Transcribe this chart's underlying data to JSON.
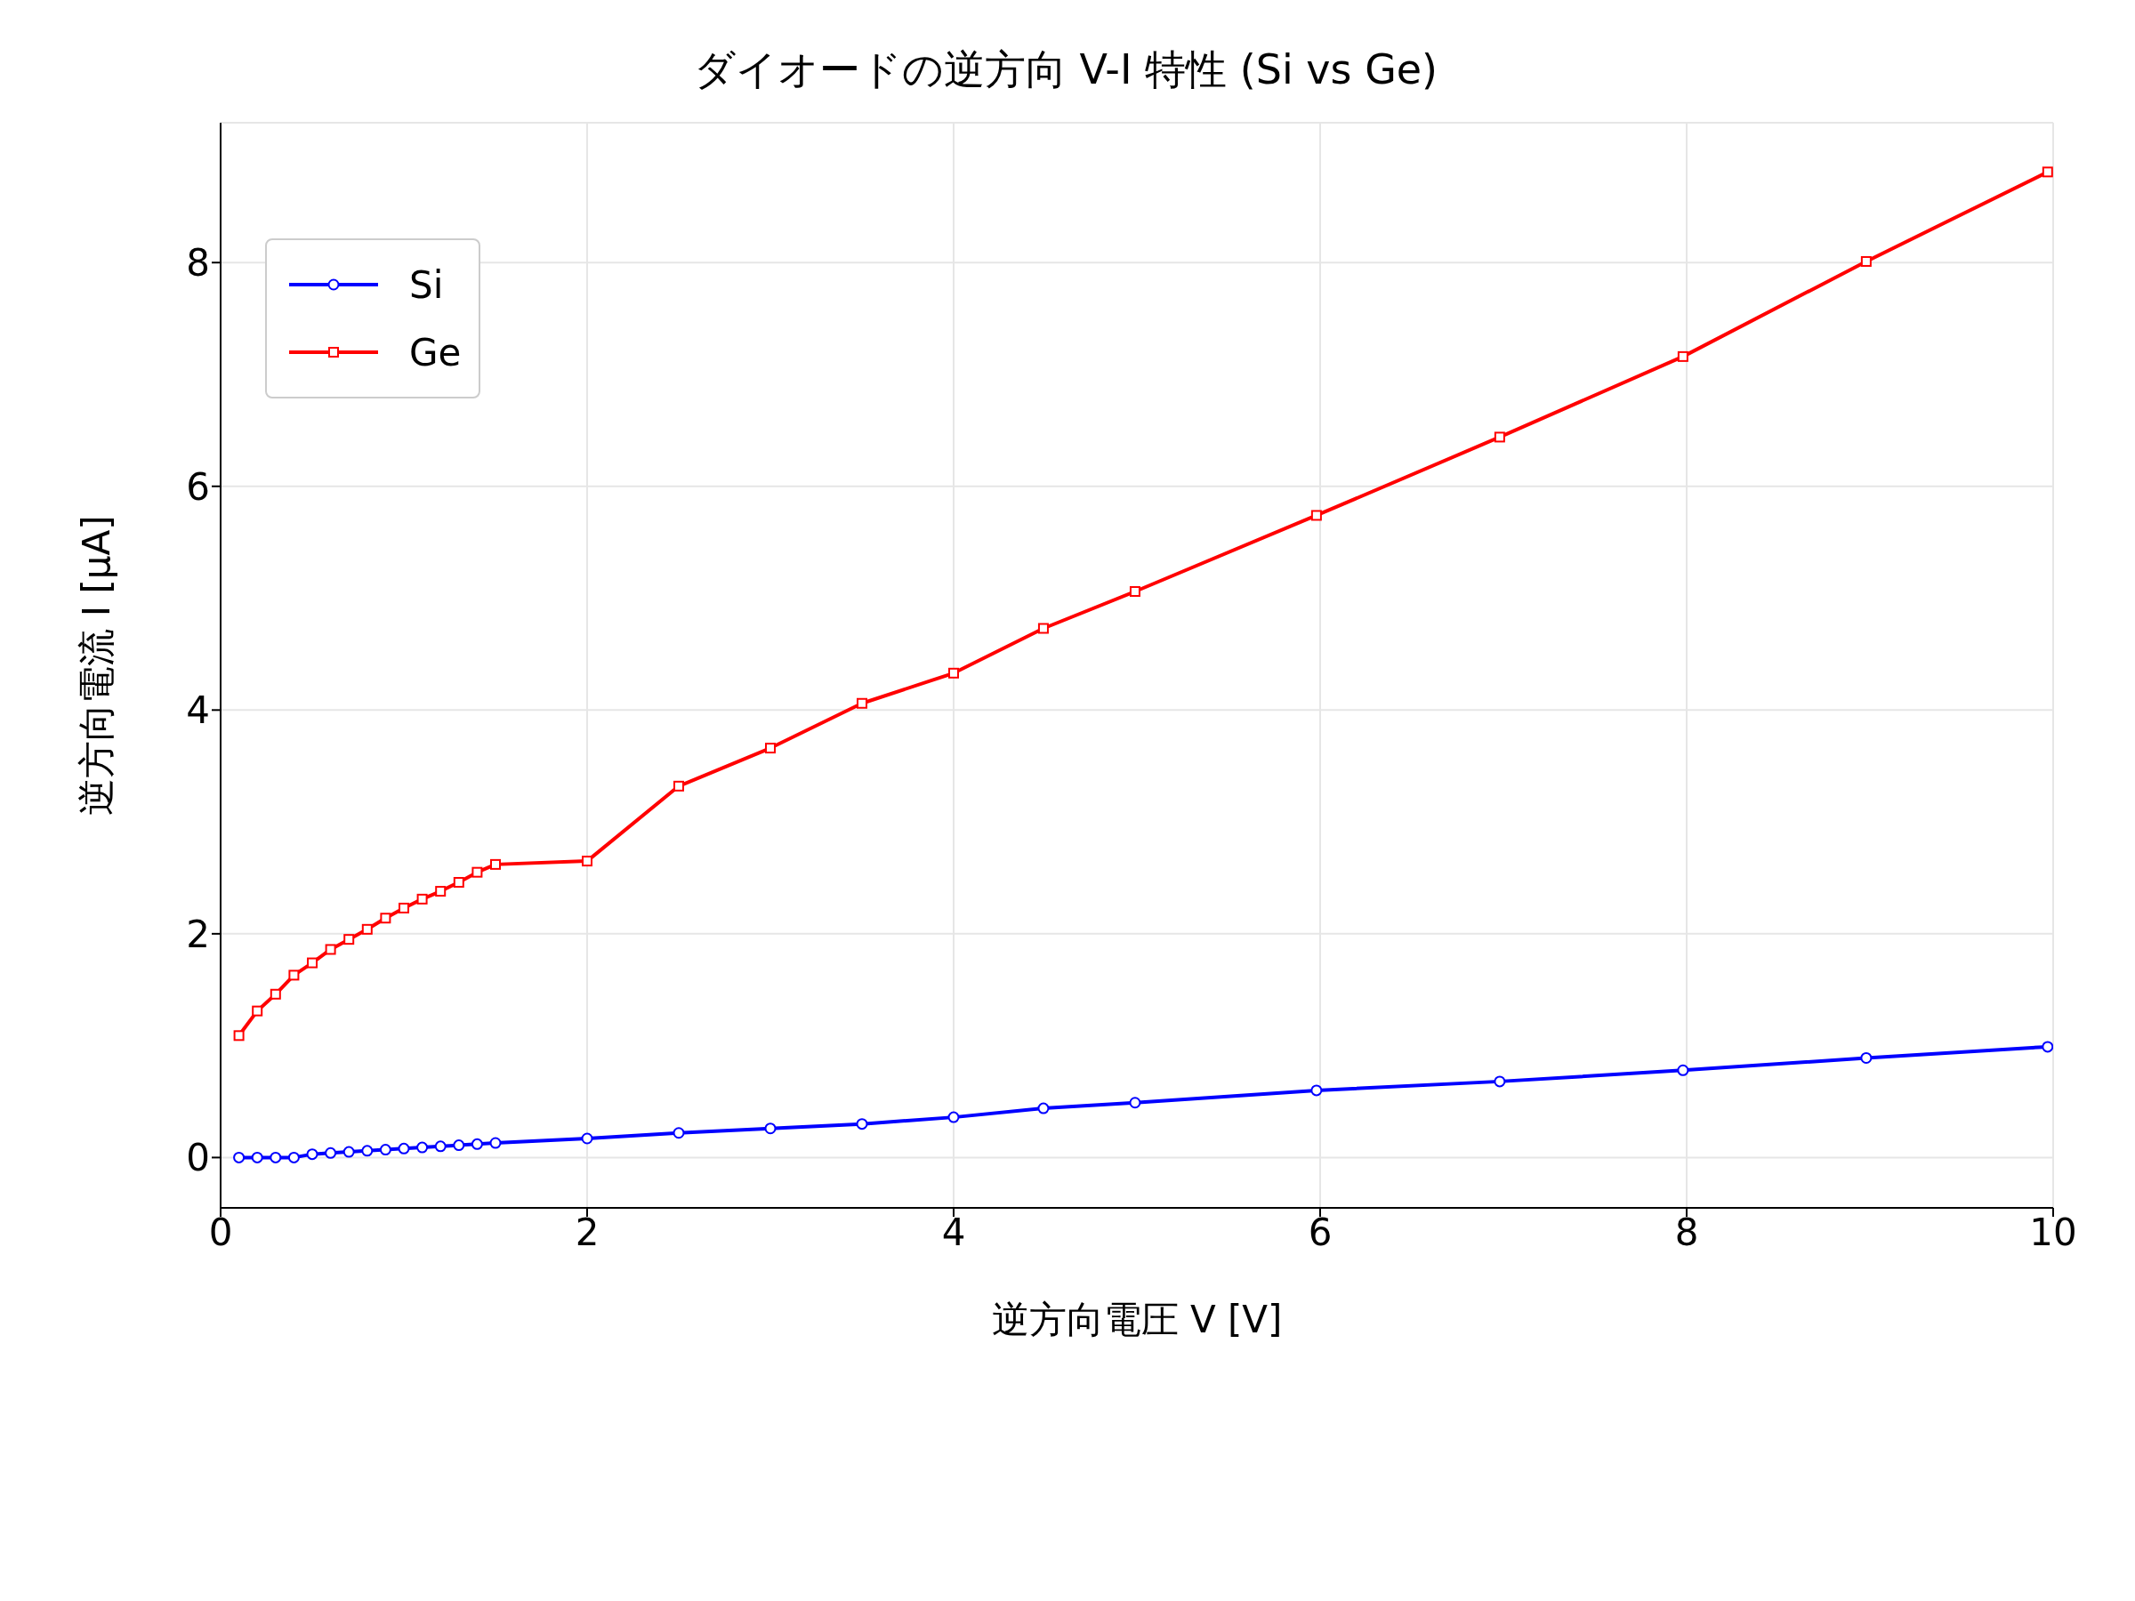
{
  "chart_data": {
    "type": "line",
    "title": "ダイオードの逆方向 V-I 特性 (Si vs Ge)",
    "xlabel": "逆方向電圧 V [V]",
    "ylabel": "逆方向電流 I [μA]",
    "xlim": [
      0,
      10
    ],
    "xticks": [
      0,
      2,
      4,
      6,
      8,
      10
    ],
    "ylim": [
      -0.45,
      9.25
    ],
    "yticks": [
      0,
      2,
      4,
      6,
      8
    ],
    "grid": true,
    "legend": "top left",
    "line_style": "solid",
    "series": [
      {
        "name": "Si",
        "color": "#0000ff",
        "marker": "circle",
        "x": [
          0.1,
          0.2,
          0.3,
          0.4,
          0.5,
          0.6,
          0.7,
          0.8,
          0.9,
          1.0,
          1.1,
          1.2,
          1.3,
          1.4,
          1.5,
          2,
          2.5,
          3,
          3.5,
          4,
          4.49,
          4.99,
          5.98,
          6.98,
          7.98,
          8.98,
          9.97
        ],
        "values": [
          0,
          0,
          0,
          0,
          0.03,
          0.04,
          0.05,
          0.06,
          0.07,
          0.08,
          0.09,
          0.1,
          0.11,
          0.12,
          0.13,
          0.17,
          0.22,
          0.26,
          0.3,
          0.36,
          0.44,
          0.49,
          0.6,
          0.68,
          0.78,
          0.89,
          0.99
        ]
      },
      {
        "name": "Ge",
        "color": "#ff0000",
        "marker": "square",
        "x": [
          0.1,
          0.2,
          0.3,
          0.4,
          0.5,
          0.6,
          0.7,
          0.8,
          0.9,
          1.0,
          1.1,
          1.2,
          1.3,
          1.4,
          1.5,
          2,
          2.5,
          3,
          3.5,
          4,
          4.49,
          4.99,
          5.98,
          6.98,
          7.98,
          8.98,
          9.97
        ],
        "values": [
          1.09,
          1.31,
          1.46,
          1.63,
          1.74,
          1.86,
          1.95,
          2.04,
          2.14,
          2.23,
          2.31,
          2.38,
          2.46,
          2.55,
          2.62,
          2.65,
          3.32,
          3.66,
          4.06,
          4.33,
          4.73,
          5.06,
          5.74,
          6.44,
          7.16,
          8.01,
          8.81
        ]
      }
    ]
  }
}
